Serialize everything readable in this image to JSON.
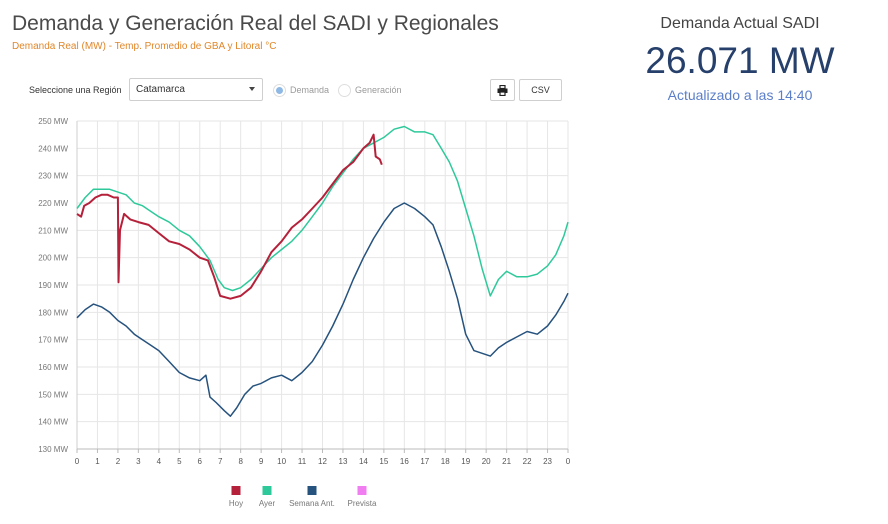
{
  "header": {
    "title": "Demanda y Generación Real del SADI y Regionales",
    "subtitle": "Demanda Real (MW) - Temp. Promedio de GBA y Litoral °C"
  },
  "current": {
    "title": "Demanda Actual SADI",
    "value": "26.071 MW",
    "updated": "Actualizado a las 14:40"
  },
  "controls": {
    "region_label": "Seleccione una Región",
    "region_value": "Catamarca",
    "radio_demand": "Demanda",
    "radio_generation": "Generación",
    "print_icon": "printer-icon",
    "csv_label": "CSV"
  },
  "colors": {
    "hoy": "#b5213a",
    "ayer": "#2ec99a",
    "semana": "#26527e",
    "prevista": "#f07ef0",
    "radio_selected": "#8fb8e4"
  },
  "chart_data": {
    "type": "line",
    "x_tick_labels": [
      "0",
      "1",
      "2",
      "3",
      "4",
      "5",
      "6",
      "7",
      "8",
      "9",
      "10",
      "11",
      "12",
      "13",
      "14",
      "15",
      "16",
      "17",
      "18",
      "19",
      "20",
      "21",
      "22",
      "23",
      "0"
    ],
    "y_tick_labels": [
      "130 MW",
      "140 MW",
      "150 MW",
      "160 MW",
      "170 MW",
      "180 MW",
      "190 MW",
      "200 MW",
      "210 MW",
      "220 MW",
      "230 MW",
      "240 MW",
      "250 MW"
    ],
    "xlim": [
      0,
      24
    ],
    "ylim": [
      130,
      250
    ],
    "grid": true,
    "legend_position": "bottom",
    "series": [
      {
        "name": "Hoy",
        "values": [
          [
            0.0,
            216
          ],
          [
            0.2,
            215
          ],
          [
            0.35,
            219
          ],
          [
            0.6,
            220
          ],
          [
            0.9,
            222
          ],
          [
            1.2,
            223
          ],
          [
            1.5,
            223
          ],
          [
            1.8,
            222
          ],
          [
            2.0,
            222
          ],
          [
            2.03,
            191
          ],
          [
            2.1,
            210
          ],
          [
            2.3,
            216
          ],
          [
            2.6,
            214
          ],
          [
            3.0,
            213
          ],
          [
            3.5,
            212
          ],
          [
            4.0,
            209
          ],
          [
            4.5,
            206
          ],
          [
            5.0,
            205
          ],
          [
            5.5,
            203
          ],
          [
            6.0,
            200
          ],
          [
            6.4,
            199
          ],
          [
            6.7,
            193
          ],
          [
            7.0,
            186
          ],
          [
            7.5,
            185
          ],
          [
            8.0,
            186
          ],
          [
            8.5,
            189
          ],
          [
            9.0,
            195
          ],
          [
            9.5,
            202
          ],
          [
            10.0,
            206
          ],
          [
            10.5,
            211
          ],
          [
            11.0,
            214
          ],
          [
            11.5,
            218
          ],
          [
            12.0,
            222
          ],
          [
            12.5,
            227
          ],
          [
            13.0,
            232
          ],
          [
            13.5,
            235
          ],
          [
            13.8,
            238
          ],
          [
            14.0,
            240
          ],
          [
            14.3,
            242
          ],
          [
            14.5,
            245
          ],
          [
            14.6,
            237
          ],
          [
            14.8,
            236
          ],
          [
            14.9,
            234
          ]
        ]
      },
      {
        "name": "Ayer",
        "values": [
          [
            0.0,
            218
          ],
          [
            0.4,
            222
          ],
          [
            0.8,
            225
          ],
          [
            1.2,
            225
          ],
          [
            1.6,
            225
          ],
          [
            2.0,
            224
          ],
          [
            2.4,
            223
          ],
          [
            2.8,
            220
          ],
          [
            3.2,
            219
          ],
          [
            3.6,
            217
          ],
          [
            4.0,
            215
          ],
          [
            4.5,
            213
          ],
          [
            5.0,
            210
          ],
          [
            5.5,
            208
          ],
          [
            6.0,
            204
          ],
          [
            6.5,
            199
          ],
          [
            6.9,
            192
          ],
          [
            7.2,
            189
          ],
          [
            7.6,
            188
          ],
          [
            8.0,
            189
          ],
          [
            8.5,
            192
          ],
          [
            9.0,
            196
          ],
          [
            9.5,
            200
          ],
          [
            10.0,
            203
          ],
          [
            10.5,
            206
          ],
          [
            11.0,
            210
          ],
          [
            11.5,
            215
          ],
          [
            12.0,
            220
          ],
          [
            12.5,
            226
          ],
          [
            13.0,
            231
          ],
          [
            13.5,
            236
          ],
          [
            14.0,
            240
          ],
          [
            14.5,
            242
          ],
          [
            15.0,
            244
          ],
          [
            15.5,
            247
          ],
          [
            16.0,
            248
          ],
          [
            16.5,
            246
          ],
          [
            17.0,
            246
          ],
          [
            17.4,
            245
          ],
          [
            17.8,
            240
          ],
          [
            18.2,
            235
          ],
          [
            18.6,
            228
          ],
          [
            19.0,
            218
          ],
          [
            19.4,
            208
          ],
          [
            19.8,
            196
          ],
          [
            20.2,
            186
          ],
          [
            20.6,
            192
          ],
          [
            21.0,
            195
          ],
          [
            21.5,
            193
          ],
          [
            22.0,
            193
          ],
          [
            22.5,
            194
          ],
          [
            23.0,
            197
          ],
          [
            23.4,
            201
          ],
          [
            23.8,
            208
          ],
          [
            24.0,
            213
          ]
        ]
      },
      {
        "name": "Semana Ant.",
        "values": [
          [
            0.0,
            178
          ],
          [
            0.4,
            181
          ],
          [
            0.8,
            183
          ],
          [
            1.2,
            182
          ],
          [
            1.6,
            180
          ],
          [
            2.0,
            177
          ],
          [
            2.4,
            175
          ],
          [
            2.8,
            172
          ],
          [
            3.2,
            170
          ],
          [
            3.6,
            168
          ],
          [
            4.0,
            166
          ],
          [
            4.5,
            162
          ],
          [
            5.0,
            158
          ],
          [
            5.5,
            156
          ],
          [
            6.0,
            155
          ],
          [
            6.3,
            157
          ],
          [
            6.5,
            149
          ],
          [
            6.8,
            147
          ],
          [
            7.2,
            144
          ],
          [
            7.5,
            142
          ],
          [
            7.8,
            145
          ],
          [
            8.2,
            150
          ],
          [
            8.6,
            153
          ],
          [
            9.0,
            154
          ],
          [
            9.5,
            156
          ],
          [
            10.0,
            157
          ],
          [
            10.5,
            155
          ],
          [
            11.0,
            158
          ],
          [
            11.5,
            162
          ],
          [
            12.0,
            168
          ],
          [
            12.5,
            175
          ],
          [
            13.0,
            183
          ],
          [
            13.5,
            192
          ],
          [
            14.0,
            200
          ],
          [
            14.5,
            207
          ],
          [
            15.0,
            213
          ],
          [
            15.5,
            218
          ],
          [
            16.0,
            220
          ],
          [
            16.5,
            218
          ],
          [
            17.0,
            215
          ],
          [
            17.4,
            212
          ],
          [
            17.8,
            204
          ],
          [
            18.2,
            195
          ],
          [
            18.6,
            185
          ],
          [
            19.0,
            172
          ],
          [
            19.4,
            166
          ],
          [
            19.8,
            165
          ],
          [
            20.2,
            164
          ],
          [
            20.6,
            167
          ],
          [
            21.0,
            169
          ],
          [
            21.5,
            171
          ],
          [
            22.0,
            173
          ],
          [
            22.5,
            172
          ],
          [
            23.0,
            175
          ],
          [
            23.4,
            179
          ],
          [
            23.8,
            184
          ],
          [
            24.0,
            187
          ]
        ]
      },
      {
        "name": "Prevista",
        "values": []
      }
    ]
  }
}
